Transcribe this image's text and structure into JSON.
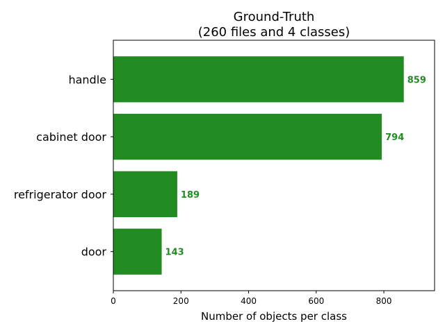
{
  "chart_data": {
    "type": "bar",
    "orientation": "horizontal",
    "title_line1": "Ground-Truth",
    "title_line2": "(260 files and 4 classes)",
    "xlabel": "Number of objects per class",
    "ylabel": "",
    "categories": [
      "handle",
      "cabinet door",
      "refrigerator door",
      "door"
    ],
    "values": [
      859,
      794,
      189,
      143
    ],
    "value_labels": [
      "859",
      "794",
      "189",
      "143"
    ],
    "xlim": [
      0,
      950
    ],
    "xticks": [
      0,
      200,
      400,
      600,
      800
    ],
    "xtick_labels": [
      "0",
      "200",
      "400",
      "600",
      "800"
    ],
    "grid": false,
    "legend": "none",
    "bar_color": "#228b22",
    "label_color": "#228b22"
  }
}
